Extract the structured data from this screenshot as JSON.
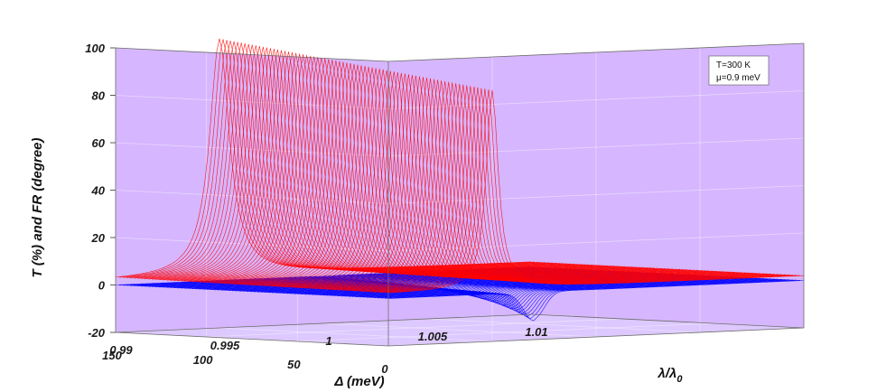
{
  "chart_data": {
    "type": "surface-3d",
    "title": "",
    "zlabel": "T (%) and FR (degree)",
    "xlabel": "Δ (meV)",
    "ylabel": "λ/λ",
    "ylabel_sub": "0",
    "zlim": [
      -20,
      100
    ],
    "z_ticks": [
      "-20",
      "0",
      "20",
      "40",
      "60",
      "80",
      "100"
    ],
    "z_tick_values": [
      -20,
      0,
      20,
      40,
      60,
      80,
      100
    ],
    "delta_ticks": [
      "150",
      "100",
      "50",
      "0"
    ],
    "delta_tick_values": [
      150,
      100,
      50,
      0
    ],
    "lambda_ticks": [
      "0.99",
      "0.995",
      "1",
      "1.005",
      "1.01"
    ],
    "lambda_tick_values": [
      0.99,
      0.995,
      1,
      1.005,
      1.01
    ],
    "xlim_delta": [
      0,
      150
    ],
    "ylim_lambda": [
      0.99,
      1.01
    ],
    "grid": true,
    "background": "#d6b6ff",
    "annotation": {
      "line1": "T=300 K",
      "line2": "μ=0.9 meV"
    },
    "series": [
      {
        "color": "#ff0000",
        "peak_lambda": 0.995,
        "peak_value_at_delta_150": 100,
        "peak_value_at_delta_0": 84,
        "baseline": 0
      },
      {
        "color": "#0000ff",
        "peak_lambda": 0.997,
        "dip_value_at_delta_0": -12,
        "baseline": 0
      }
    ]
  }
}
